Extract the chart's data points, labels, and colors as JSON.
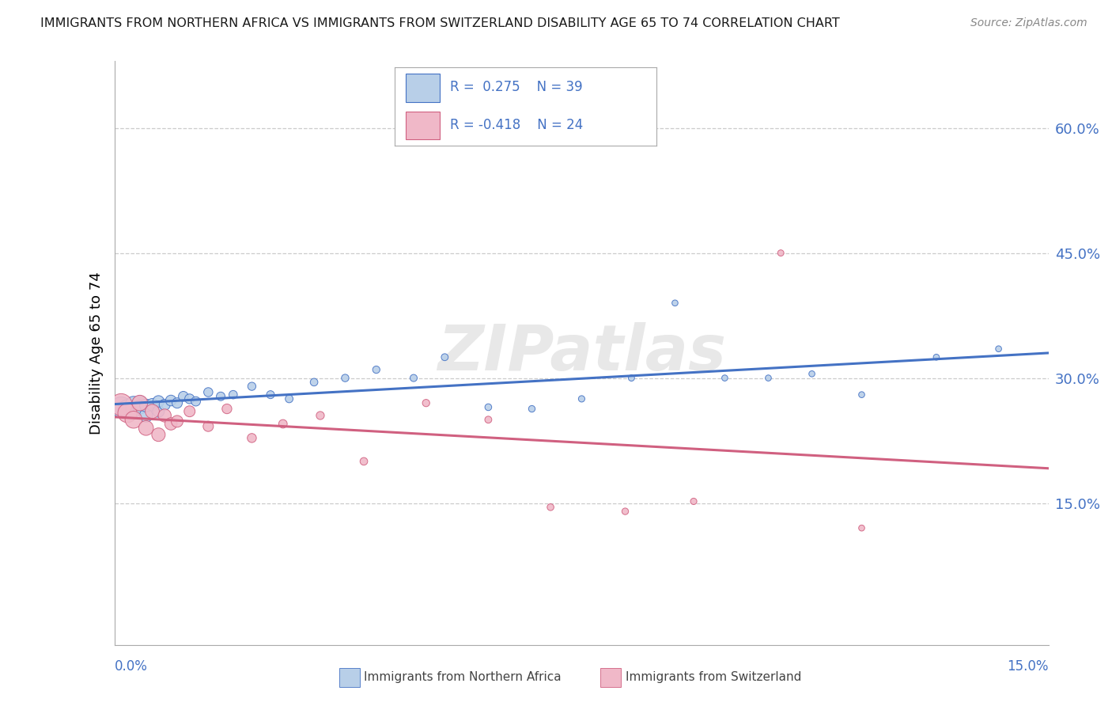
{
  "title": "IMMIGRANTS FROM NORTHERN AFRICA VS IMMIGRANTS FROM SWITZERLAND DISABILITY AGE 65 TO 74 CORRELATION CHART",
  "source": "Source: ZipAtlas.com",
  "ylabel": "Disability Age 65 to 74",
  "legend_label_blue": "Immigrants from Northern Africa",
  "legend_label_pink": "Immigrants from Switzerland",
  "R_blue": 0.275,
  "N_blue": 39,
  "R_pink": -0.418,
  "N_pink": 24,
  "blue_face": "#b8cfe8",
  "blue_edge": "#4472c4",
  "pink_face": "#f0b8c8",
  "pink_edge": "#d06080",
  "blue_line": "#4472c4",
  "pink_line": "#d06080",
  "bg_color": "#ffffff",
  "grid_color": "#cccccc",
  "ytick_values": [
    0.15,
    0.3,
    0.45,
    0.6
  ],
  "ytick_labels": [
    "15.0%",
    "30.0%",
    "45.0%",
    "60.0%"
  ],
  "xlim": [
    0.0,
    0.15
  ],
  "ylim": [
    -0.02,
    0.68
  ],
  "blue_x": [
    0.001,
    0.002,
    0.003,
    0.003,
    0.004,
    0.004,
    0.005,
    0.005,
    0.006,
    0.007,
    0.007,
    0.008,
    0.009,
    0.01,
    0.011,
    0.012,
    0.013,
    0.015,
    0.017,
    0.019,
    0.022,
    0.025,
    0.028,
    0.032,
    0.037,
    0.042,
    0.048,
    0.053,
    0.06,
    0.067,
    0.075,
    0.083,
    0.09,
    0.098,
    0.105,
    0.112,
    0.12,
    0.132,
    0.142
  ],
  "blue_y": [
    0.265,
    0.263,
    0.268,
    0.262,
    0.27,
    0.265,
    0.255,
    0.267,
    0.268,
    0.26,
    0.272,
    0.268,
    0.273,
    0.27,
    0.278,
    0.275,
    0.272,
    0.283,
    0.278,
    0.28,
    0.29,
    0.28,
    0.275,
    0.295,
    0.3,
    0.31,
    0.3,
    0.325,
    0.265,
    0.263,
    0.275,
    0.3,
    0.39,
    0.3,
    0.3,
    0.305,
    0.28,
    0.325,
    0.335
  ],
  "blue_s": [
    350,
    280,
    230,
    200,
    180,
    160,
    145,
    135,
    125,
    115,
    108,
    100,
    95,
    88,
    82,
    78,
    72,
    68,
    62,
    58,
    55,
    52,
    50,
    48,
    46,
    44,
    42,
    40,
    38,
    36,
    34,
    32,
    30,
    30,
    30,
    30,
    30,
    30,
    30
  ],
  "pink_x": [
    0.001,
    0.002,
    0.003,
    0.004,
    0.005,
    0.006,
    0.007,
    0.008,
    0.009,
    0.01,
    0.012,
    0.015,
    0.018,
    0.022,
    0.027,
    0.033,
    0.04,
    0.05,
    0.06,
    0.07,
    0.082,
    0.093,
    0.107,
    0.12
  ],
  "pink_y": [
    0.268,
    0.258,
    0.25,
    0.27,
    0.24,
    0.26,
    0.232,
    0.255,
    0.245,
    0.248,
    0.26,
    0.242,
    0.263,
    0.228,
    0.245,
    0.255,
    0.2,
    0.27,
    0.25,
    0.145,
    0.14,
    0.152,
    0.45,
    0.12
  ],
  "pink_s": [
    400,
    300,
    240,
    200,
    180,
    165,
    150,
    138,
    125,
    115,
    100,
    88,
    78,
    68,
    60,
    54,
    48,
    44,
    40,
    38,
    36,
    34,
    32,
    30
  ]
}
